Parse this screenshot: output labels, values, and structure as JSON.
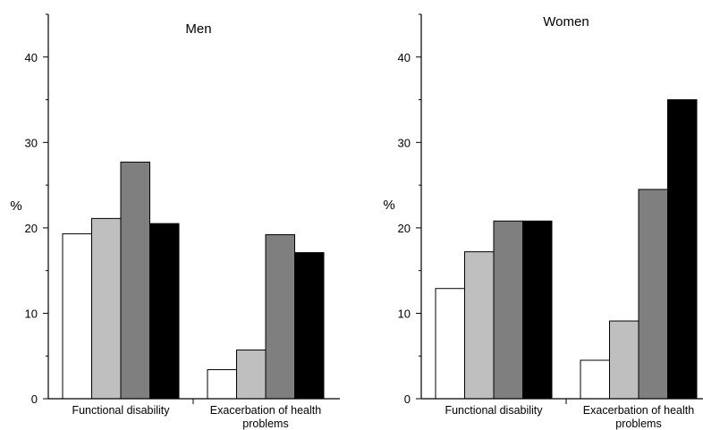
{
  "chart_data": [
    {
      "type": "bar",
      "title": "Men",
      "ylabel": "%",
      "ylim": [
        0,
        45
      ],
      "yticks": [
        0,
        10,
        20,
        30,
        40
      ],
      "categories": [
        [
          "Functional disability"
        ],
        [
          "Exacerbation of health",
          "problems"
        ]
      ],
      "series": [
        {
          "color": "#ffffff",
          "values": [
            19.3,
            3.4
          ]
        },
        {
          "color": "#bfbfbf",
          "values": [
            21.1,
            5.7
          ]
        },
        {
          "color": "#7f7f7f",
          "values": [
            27.7,
            19.2
          ]
        },
        {
          "color": "#000000",
          "values": [
            20.5,
            17.1
          ]
        }
      ]
    },
    {
      "type": "bar",
      "title": "Women",
      "ylabel": "%",
      "ylim": [
        0,
        45
      ],
      "yticks": [
        0,
        10,
        20,
        30,
        40
      ],
      "categories": [
        [
          "Functional disability"
        ],
        [
          "Exacerbation of health",
          "problems"
        ]
      ],
      "series": [
        {
          "color": "#ffffff",
          "values": [
            12.9,
            4.5
          ]
        },
        {
          "color": "#bfbfbf",
          "values": [
            17.2,
            9.1
          ]
        },
        {
          "color": "#7f7f7f",
          "values": [
            20.8,
            24.5
          ]
        },
        {
          "color": "#000000",
          "values": [
            20.8,
            35.0
          ]
        }
      ]
    }
  ]
}
